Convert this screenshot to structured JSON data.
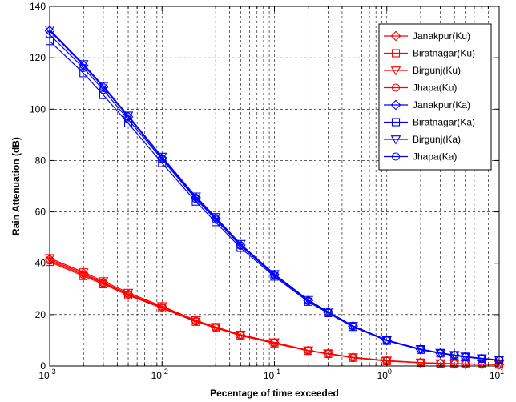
{
  "chart_data": {
    "type": "line",
    "title": "",
    "xlabel": "Pecentage of time exceeded",
    "ylabel": "Rain Attenuation (dB)",
    "x_scale": "log",
    "xlim": [
      0.001,
      10
    ],
    "ylim": [
      0,
      140
    ],
    "grid": true,
    "legend_position": "top-right",
    "x_tick_labels": [
      {
        "base": "10",
        "exp": "-3"
      },
      {
        "base": "10",
        "exp": "-2"
      },
      {
        "base": "10",
        "exp": "-1"
      },
      {
        "base": "10",
        "exp": "0"
      },
      {
        "base": "10",
        "exp": "1"
      }
    ],
    "y_ticks": [
      0,
      20,
      40,
      60,
      80,
      100,
      120,
      140
    ],
    "x": [
      0.001,
      0.002,
      0.003,
      0.005,
      0.01,
      0.02,
      0.03,
      0.05,
      0.1,
      0.2,
      0.3,
      0.5,
      1,
      2,
      3,
      4,
      5,
      7,
      10
    ],
    "series": [
      {
        "name": "Janakpur(Ku)",
        "color": "#ff0000",
        "marker": "diamond",
        "values": [
          41.5,
          36,
          32.5,
          28,
          23,
          17.5,
          15,
          12,
          9,
          6,
          4.8,
          3.3,
          2,
          1.3,
          1,
          0.9,
          0.8,
          0.7,
          0.6
        ]
      },
      {
        "name": "Biratnagar(Ku)",
        "color": "#ff0000",
        "marker": "square",
        "values": [
          40.5,
          35,
          31.8,
          27.5,
          22.5,
          17.2,
          14.8,
          11.8,
          8.8,
          5.9,
          4.7,
          3.2,
          1.9,
          1.25,
          0.95,
          0.85,
          0.75,
          0.65,
          0.55
        ]
      },
      {
        "name": "Birgunj(Ku)",
        "color": "#ff0000",
        "marker": "triangle-down",
        "values": [
          42,
          36.5,
          33,
          28.5,
          23.3,
          17.8,
          15.2,
          12.2,
          9.2,
          6.1,
          4.9,
          3.4,
          2.1,
          1.35,
          1.05,
          0.92,
          0.82,
          0.72,
          0.62
        ]
      },
      {
        "name": "Jhapa(Ku)",
        "color": "#ff0000",
        "marker": "circle",
        "values": [
          41,
          35.5,
          32.2,
          27.8,
          22.8,
          17.4,
          14.9,
          11.9,
          8.9,
          6,
          4.75,
          3.25,
          1.95,
          1.28,
          0.98,
          0.88,
          0.78,
          0.68,
          0.58
        ]
      },
      {
        "name": "Janakpur(Ka)",
        "color": "#0000ff",
        "marker": "diamond",
        "values": [
          130.5,
          117,
          108.5,
          97,
          81,
          65.5,
          57.5,
          47,
          35.5,
          25.5,
          21,
          15.5,
          10,
          6.5,
          5,
          4.2,
          3.6,
          2.9,
          2.3
        ]
      },
      {
        "name": "Biratnagar(Ka)",
        "color": "#0000ff",
        "marker": "square",
        "values": [
          126.5,
          114,
          105.5,
          94.5,
          79,
          64,
          56,
          46,
          34.8,
          25,
          20.6,
          15.2,
          9.8,
          6.3,
          4.9,
          4.1,
          3.5,
          2.8,
          2.2
        ]
      },
      {
        "name": "Birgunj(Ka)",
        "color": "#0000ff",
        "marker": "triangle-down",
        "values": [
          131,
          117.5,
          109,
          97.5,
          81.5,
          66,
          58,
          47.5,
          35.8,
          25.7,
          21.2,
          15.6,
          10.1,
          6.6,
          5.1,
          4.3,
          3.7,
          3,
          2.4
        ]
      },
      {
        "name": "Jhapa(Ka)",
        "color": "#0000ff",
        "marker": "circle",
        "values": [
          129,
          116,
          107.5,
          96,
          80.5,
          65,
          57,
          46.8,
          35.3,
          25.3,
          20.9,
          15.4,
          9.9,
          6.4,
          4.95,
          4.15,
          3.55,
          2.85,
          2.25
        ]
      }
    ]
  }
}
